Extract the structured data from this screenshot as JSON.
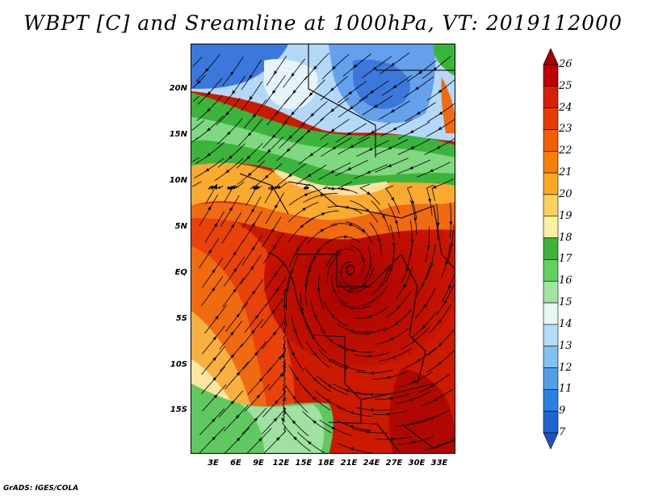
{
  "title": "WBPT [C] and Sreamline at 1000hPa, VT: 2019112000",
  "credit": "GrADS: IGES/COLA",
  "map": {
    "lat_labels": [
      "20N",
      "15N",
      "10N",
      "5N",
      "EQ",
      "5S",
      "10S",
      "15S"
    ],
    "lon_labels": [
      "3E",
      "6E",
      "9E",
      "12E",
      "15E",
      "18E",
      "21E",
      "24E",
      "27E",
      "30E",
      "33E"
    ]
  },
  "colorbar": {
    "labels": [
      "26",
      "25",
      "24",
      "23",
      "22",
      "21",
      "20",
      "19",
      "18",
      "17",
      "16",
      "15",
      "14",
      "13",
      "12",
      "11",
      "9",
      "7"
    ],
    "colors": [
      "#a00000",
      "#c00000",
      "#d82000",
      "#e63c00",
      "#f06000",
      "#f88000",
      "#fbaa20",
      "#fcd060",
      "#fdf0a0",
      "#3cb43c",
      "#60d060",
      "#a0e6a0",
      "#e6f8f0",
      "#b4dcf8",
      "#82c0f0",
      "#50a0e8",
      "#2882e6",
      "#1e64d2",
      "#1e50c8"
    ]
  }
}
